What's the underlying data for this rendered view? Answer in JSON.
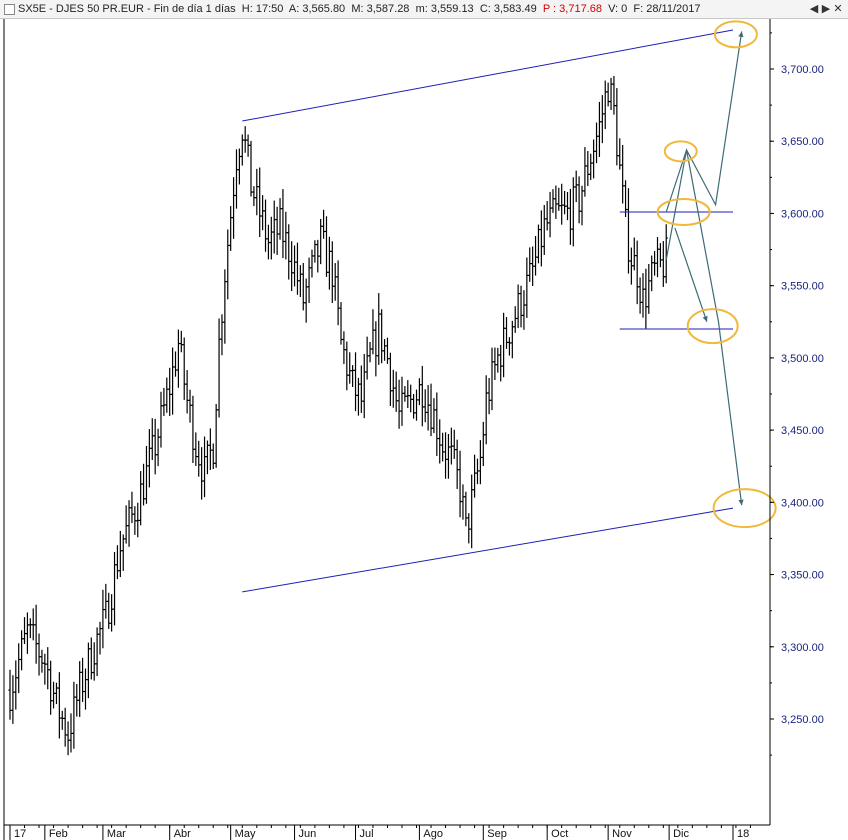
{
  "header": {
    "symbol": "SX5E - DJES 50 PR.EUR - Fin de día 1 días",
    "h_label": "H:",
    "h_value": "17:50",
    "a_label": "A:",
    "a_value": "3,565.80",
    "m_label": "M:",
    "m_value": "3,587.28",
    "mn_label": "m:",
    "mn_value": "3,559.13",
    "c_label": "C:",
    "c_value": "3,583.49",
    "p_label": "P :",
    "p_value": "3,717.68",
    "v_label": "V:",
    "v_value": "0",
    "f_label": "F:",
    "f_value": "28/11/2017"
  },
  "window_buttons": [
    "◀",
    "▶",
    "✕"
  ],
  "chart_data": {
    "type": "candlestick",
    "y_ticks": [
      "3,250.00",
      "3,300.00",
      "3,350.00",
      "3,400.00",
      "3,450.00",
      "3,500.00",
      "3,550.00",
      "3,600.00",
      "3,650.00",
      "3,700.00"
    ],
    "y_tick_values": [
      3250,
      3300,
      3350,
      3400,
      3450,
      3500,
      3550,
      3600,
      3650,
      3700
    ],
    "ylim": [
      3200,
      3750
    ],
    "x_ticks": [
      "17",
      "Feb",
      "Mar",
      "Abr",
      "May",
      "Jun",
      "Jul",
      "Ago",
      "Sep",
      "Oct",
      "Nov",
      "Dic",
      "18"
    ],
    "x_tick_index": [
      0,
      12,
      32,
      55,
      76,
      98,
      119,
      141,
      163,
      185,
      206,
      227,
      249
    ],
    "price_path": [
      [
        0,
        3270
      ],
      [
        6,
        3310
      ],
      [
        12,
        3290
      ],
      [
        16,
        3260
      ],
      [
        20,
        3240
      ],
      [
        24,
        3270
      ],
      [
        29,
        3300
      ],
      [
        33,
        3320
      ],
      [
        38,
        3370
      ],
      [
        44,
        3400
      ],
      [
        50,
        3440
      ],
      [
        55,
        3480
      ],
      [
        58,
        3510
      ],
      [
        61,
        3470
      ],
      [
        64,
        3440
      ],
      [
        67,
        3420
      ],
      [
        70,
        3440
      ],
      [
        72,
        3510
      ],
      [
        74,
        3560
      ],
      [
        76,
        3600
      ],
      [
        78,
        3640
      ],
      [
        80,
        3660
      ],
      [
        83,
        3620
      ],
      [
        86,
        3600
      ],
      [
        89,
        3580
      ],
      [
        93,
        3590
      ],
      [
        97,
        3570
      ],
      [
        101,
        3540
      ],
      [
        104,
        3560
      ],
      [
        107,
        3580
      ],
      [
        111,
        3560
      ],
      [
        114,
        3510
      ],
      [
        118,
        3480
      ],
      [
        121,
        3470
      ],
      [
        124,
        3500
      ],
      [
        127,
        3520
      ],
      [
        130,
        3500
      ],
      [
        134,
        3460
      ],
      [
        138,
        3470
      ],
      [
        142,
        3480
      ],
      [
        146,
        3460
      ],
      [
        149,
        3440
      ],
      [
        152,
        3430
      ],
      [
        155,
        3410
      ],
      [
        157,
        3380
      ],
      [
        159,
        3400
      ],
      [
        162,
        3430
      ],
      [
        164,
        3470
      ],
      [
        168,
        3500
      ],
      [
        172,
        3520
      ],
      [
        176,
        3540
      ],
      [
        180,
        3560
      ],
      [
        184,
        3590
      ],
      [
        188,
        3600
      ],
      [
        192,
        3600
      ],
      [
        196,
        3610
      ],
      [
        200,
        3640
      ],
      [
        203,
        3660
      ],
      [
        206,
        3690
      ],
      [
        208,
        3670
      ],
      [
        210,
        3630
      ],
      [
        212,
        3590
      ],
      [
        214,
        3570
      ],
      [
        216,
        3560
      ],
      [
        218,
        3540
      ],
      [
        220,
        3550
      ],
      [
        222,
        3560
      ],
      [
        225,
        3565
      ],
      [
        226,
        3583
      ]
    ],
    "overlay_lines": [
      {
        "name": "upper-channel",
        "x1": 80,
        "y1": 3664,
        "x2": 249,
        "y2": 3727
      },
      {
        "name": "lower-channel",
        "x1": 80,
        "y1": 3338,
        "x2": 249,
        "y2": 3396
      },
      {
        "name": "resistance",
        "x1": 210,
        "y1": 3601,
        "x2": 249,
        "y2": 3601
      },
      {
        "name": "support",
        "x1": 210,
        "y1": 3520,
        "x2": 249,
        "y2": 3520
      }
    ],
    "projection_paths": [
      [
        [
          226,
          3568
        ],
        [
          233,
          3644
        ],
        [
          243,
          3606
        ],
        [
          252,
          3726
        ]
      ],
      [
        [
          226,
          3601
        ],
        [
          233,
          3644
        ],
        [
          244,
          3525
        ],
        [
          252,
          3398
        ]
      ],
      [
        [
          229,
          3590
        ],
        [
          240,
          3525
        ]
      ]
    ],
    "highlight_ellipses": [
      {
        "x": 250,
        "y": 3724
      },
      {
        "x": 231,
        "y": 3643
      },
      {
        "x": 232,
        "y": 3601
      },
      {
        "x": 242,
        "y": 3522
      },
      {
        "x": 253,
        "y": 3396
      }
    ],
    "colors": {
      "bars": "#000000",
      "channel": "#1e1eb4",
      "projection": "#3d6b75",
      "highlight": "#f0b93a",
      "y_ticks": "#1a237e"
    }
  }
}
